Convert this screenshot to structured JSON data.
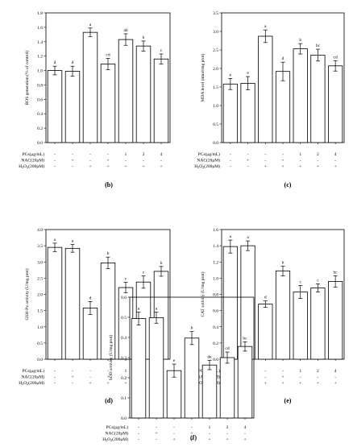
{
  "treatment_rows": {
    "labels": [
      "PCs(μg/mL)",
      "NAC(20μM)",
      "H2O2(200μM)"
    ],
    "PCs": [
      "-",
      "-",
      "-",
      "-",
      "1",
      "2",
      "4"
    ],
    "NAC": [
      "-",
      "+",
      "-",
      "+",
      "-",
      "-",
      "-"
    ],
    "H2O2": [
      "-",
      "-",
      "+",
      "+",
      "+",
      "+",
      "+"
    ]
  },
  "chart_data": [
    {
      "type": "bar",
      "panel": "(b)",
      "ylabel": "ROS generation (% of control)",
      "ylim": [
        0,
        1.8
      ],
      "yticks": [
        "0.0",
        "0.2",
        "0.4",
        "0.6",
        "0.8",
        "1.0",
        "1.2",
        "1.4",
        "1.6",
        "1.8"
      ],
      "values": [
        1.0,
        0.99,
        1.53,
        1.09,
        1.43,
        1.34,
        1.16
      ],
      "errors": [
        0.06,
        0.07,
        0.06,
        0.08,
        0.08,
        0.07,
        0.07
      ],
      "letters": [
        "d",
        "d",
        "a",
        "cd",
        "ab",
        "b",
        "c"
      ]
    },
    {
      "type": "bar",
      "panel": "(c)",
      "ylabel": "MDA level (nmol/mg prot)",
      "ylim": [
        0,
        3.5
      ],
      "yticks": [
        "0.0",
        "0.5",
        "1.0",
        "1.5",
        "2.0",
        "2.5",
        "3.0",
        "3.5"
      ],
      "values": [
        1.58,
        1.6,
        2.87,
        1.92,
        2.53,
        2.36,
        2.07
      ],
      "errors": [
        0.15,
        0.18,
        0.17,
        0.25,
        0.14,
        0.16,
        0.14
      ],
      "letters": [
        "e",
        "e",
        "a",
        "d",
        "b",
        "bc",
        "cd"
      ]
    },
    {
      "type": "bar",
      "panel": "(d)",
      "ylabel": "GSH-Px activity (U/mg prot)",
      "ylim": [
        0,
        4.0
      ],
      "yticks": [
        "0.0",
        "0.5",
        "1.0",
        "1.5",
        "2.0",
        "2.5",
        "3.0",
        "3.5",
        "4.0"
      ],
      "values": [
        3.45,
        3.42,
        1.58,
        2.97,
        2.21,
        2.38,
        2.71
      ],
      "errors": [
        0.13,
        0.12,
        0.2,
        0.18,
        0.16,
        0.19,
        0.15
      ],
      "letters": [
        "a",
        "a",
        "d",
        "b",
        "c",
        "c",
        "b"
      ]
    },
    {
      "type": "bar",
      "panel": "(e)",
      "ylabel": "CAT activity (U/mg prot)",
      "ylim": [
        0,
        1.6
      ],
      "yticks": [
        "0.0",
        "0.2",
        "0.4",
        "0.6",
        "0.8",
        "1.0",
        "1.2",
        "1.4",
        "1.6"
      ],
      "values": [
        1.39,
        1.4,
        0.68,
        1.09,
        0.83,
        0.88,
        0.96
      ],
      "errors": [
        0.08,
        0.06,
        0.04,
        0.06,
        0.08,
        0.05,
        0.07
      ],
      "letters": [
        "a",
        "a",
        "d",
        "b",
        "c",
        "c",
        "bc"
      ]
    },
    {
      "type": "bar",
      "panel": "(f)",
      "ylabel": "SOD activity (U/mg prot)",
      "ylim": [
        0,
        0.65
      ],
      "yticks": [
        "0.0",
        "0.1",
        "0.2",
        "0.3",
        "0.4",
        "0.5",
        "0.6"
      ],
      "values": [
        0.535,
        0.54,
        0.255,
        0.43,
        0.285,
        0.325,
        0.385
      ],
      "errors": [
        0.035,
        0.03,
        0.035,
        0.035,
        0.025,
        0.03,
        0.025
      ],
      "letters": [
        "a",
        "a",
        "e",
        "b",
        "de",
        "cd",
        "bc"
      ]
    }
  ]
}
